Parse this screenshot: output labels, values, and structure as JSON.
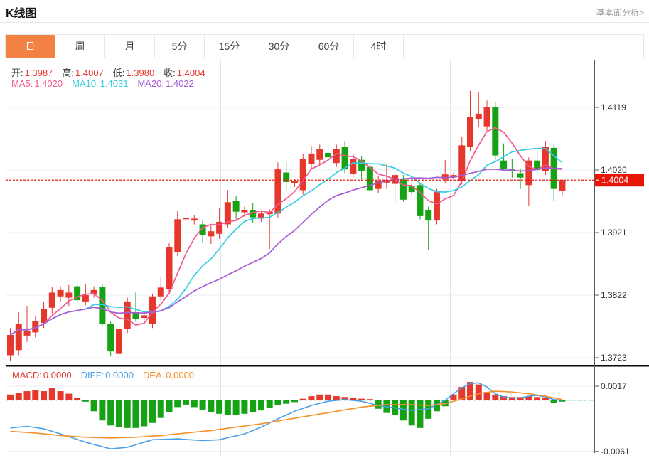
{
  "header": {
    "title": "K线图",
    "analysis_link": "基本面分析>"
  },
  "tabs": {
    "active_index": 0,
    "items": [
      "日",
      "周",
      "月",
      "5分",
      "15分",
      "30分",
      "60分",
      "4时"
    ]
  },
  "ohlc_info": {
    "items": [
      {
        "label": "开:",
        "value": "1.3987"
      },
      {
        "label": "高:",
        "value": "1.4007"
      },
      {
        "label": "低:",
        "value": "1.3980"
      },
      {
        "label": "收:",
        "value": "1.4004"
      }
    ]
  },
  "ma_info": {
    "items": [
      {
        "label": "MA5:",
        "value": "1.4020",
        "color": "#f2588f"
      },
      {
        "label": "MA10:",
        "value": "1.4031",
        "color": "#36cde4"
      },
      {
        "label": "MA20:",
        "value": "1.4022",
        "color": "#a65ad6"
      }
    ]
  },
  "macd_info": {
    "items": [
      {
        "label": "MACD:",
        "value": "0.0000",
        "color": "#e8392f"
      },
      {
        "label": "DIFF:",
        "value": "0.0000",
        "color": "#4aa0e8"
      },
      {
        "label": "DEA:",
        "value": "0.0000",
        "color": "#f5902b"
      }
    ]
  },
  "chart_data": {
    "type": "candlestick",
    "title": "K线图",
    "price_axis_ticks": [
      1.4119,
      1.402,
      1.3921,
      1.3822,
      1.3723
    ],
    "current_price": 1.4004,
    "grid": true,
    "colors": {
      "up": "#e5372c",
      "down": "#15a215",
      "current_line": "#ea1c0d",
      "grid": "#e9eff5",
      "vgrid": "#dce6ee",
      "axis": "#5a5a5a",
      "tag_bg": "#e81508"
    },
    "ma_periods": [
      5,
      10,
      20
    ],
    "ma_colors": [
      "#f2588f",
      "#36cde4",
      "#a65ad6"
    ],
    "candles": [
      [
        1.3727,
        1.377,
        1.3718,
        1.3759
      ],
      [
        1.3735,
        1.3795,
        1.3727,
        1.3776
      ],
      [
        1.3758,
        1.3805,
        1.3748,
        1.3766
      ],
      [
        1.3763,
        1.3788,
        1.3755,
        1.3781
      ],
      [
        1.3778,
        1.3812,
        1.377,
        1.38
      ],
      [
        1.3802,
        1.3835,
        1.3793,
        1.3826
      ],
      [
        1.382,
        1.3836,
        1.3812,
        1.383
      ],
      [
        1.3818,
        1.3838,
        1.3805,
        1.3826
      ],
      [
        1.3836,
        1.3843,
        1.381,
        1.3814
      ],
      [
        1.3812,
        1.384,
        1.3806,
        1.3822
      ],
      [
        1.3824,
        1.3836,
        1.3818,
        1.383
      ],
      [
        1.3835,
        1.384,
        1.3773,
        1.3776
      ],
      [
        1.3776,
        1.378,
        1.3725,
        1.3733
      ],
      [
        1.3729,
        1.3772,
        1.372,
        1.3768
      ],
      [
        1.3768,
        1.3818,
        1.3762,
        1.3812
      ],
      [
        1.3795,
        1.3826,
        1.378,
        1.3784
      ],
      [
        1.3786,
        1.3794,
        1.378,
        1.379
      ],
      [
        1.3777,
        1.3824,
        1.377,
        1.382
      ],
      [
        1.382,
        1.3851,
        1.3813,
        1.3834
      ],
      [
        1.3832,
        1.3904,
        1.3826,
        1.3898
      ],
      [
        1.389,
        1.3955,
        1.3884,
        1.3942
      ],
      [
        1.3942,
        1.396,
        1.3925,
        1.3944
      ],
      [
        1.394,
        1.3948,
        1.3934,
        1.3943
      ],
      [
        1.3934,
        1.394,
        1.3905,
        1.3917
      ],
      [
        1.3915,
        1.3932,
        1.3903,
        1.3923
      ],
      [
        1.3919,
        1.3959,
        1.3911,
        1.3938
      ],
      [
        1.3934,
        1.3988,
        1.3928,
        1.3969
      ],
      [
        1.3971,
        1.3979,
        1.3942,
        1.3954
      ],
      [
        1.3953,
        1.3962,
        1.3946,
        1.3957
      ],
      [
        1.3957,
        1.3968,
        1.3936,
        1.3945
      ],
      [
        1.3943,
        1.3956,
        1.3938,
        1.3951
      ],
      [
        1.395,
        1.3958,
        1.3895,
        1.3954
      ],
      [
        1.3951,
        1.4032,
        1.3944,
        1.4021
      ],
      [
        1.4016,
        1.4033,
        1.3989,
        1.4001
      ],
      [
        1.3999,
        1.4006,
        1.3993,
        1.4002
      ],
      [
        1.3988,
        1.4045,
        1.3981,
        1.4038
      ],
      [
        1.4029,
        1.4058,
        1.4022,
        1.4046
      ],
      [
        1.4036,
        1.406,
        1.4028,
        1.4053
      ],
      [
        1.4047,
        1.4068,
        1.403,
        1.404
      ],
      [
        1.4031,
        1.406,
        1.4025,
        1.4053
      ],
      [
        1.4057,
        1.4066,
        1.4015,
        1.4021
      ],
      [
        1.4014,
        1.4045,
        1.4008,
        1.4038
      ],
      [
        1.4036,
        1.4042,
        1.4005,
        1.4019
      ],
      [
        1.4025,
        1.403,
        1.3983,
        1.3988
      ],
      [
        1.399,
        1.401,
        1.3984,
        1.4002
      ],
      [
        1.4,
        1.403,
        1.399,
        1.4004
      ],
      [
        1.3998,
        1.4018,
        1.3968,
        1.4012
      ],
      [
        1.4005,
        1.4012,
        1.397,
        1.3973
      ],
      [
        1.3994,
        1.4,
        1.398,
        1.3985
      ],
      [
        1.3996,
        1.4,
        1.3942,
        1.3947
      ],
      [
        1.3957,
        1.3962,
        1.3893,
        1.394
      ],
      [
        1.394,
        1.399,
        1.3934,
        1.3986
      ],
      [
        1.4005,
        1.4036,
        1.3999,
        1.4013
      ],
      [
        1.4008,
        1.4016,
        1.4002,
        1.4012
      ],
      [
        1.4003,
        1.4072,
        1.3997,
        1.4059
      ],
      [
        1.4056,
        1.4145,
        1.405,
        1.4104
      ],
      [
        1.41,
        1.4143,
        1.4088,
        1.4109
      ],
      [
        1.4089,
        1.413,
        1.4082,
        1.412
      ],
      [
        1.4119,
        1.4128,
        1.4036,
        1.4043
      ],
      [
        1.4035,
        1.4062,
        1.4018,
        1.4022
      ],
      [
        1.4021,
        1.4038,
        1.4008,
        1.4019
      ],
      [
        1.4015,
        1.4022,
        1.399,
        1.4008
      ],
      [
        1.3996,
        1.404,
        1.3963,
        1.4035
      ],
      [
        1.4035,
        1.4051,
        1.4014,
        1.402
      ],
      [
        1.4018,
        1.4066,
        1.4012,
        1.4057
      ],
      [
        1.4055,
        1.4062,
        1.3971,
        1.399
      ],
      [
        1.3987,
        1.4007,
        1.398,
        1.4004
      ]
    ],
    "macd": {
      "axis_ticks": [
        0.0017,
        -0.0061
      ],
      "diff_color": "#4aa0e8",
      "dea_color": "#f5902b",
      "histogram": [
        0.0007,
        0.0009,
        0.0011,
        0.0012,
        0.0011,
        0.0015,
        0.0011,
        0.0008,
        0.0003,
        -0.0001,
        -0.0013,
        -0.0024,
        -0.003,
        -0.0032,
        -0.0033,
        -0.0033,
        -0.0031,
        -0.0027,
        -0.0021,
        -0.0014,
        -0.0008,
        -0.0005,
        -0.0008,
        -0.0011,
        -0.0014,
        -0.0016,
        -0.0017,
        -0.0017,
        -0.0016,
        -0.0014,
        -0.0012,
        -0.0009,
        -0.0006,
        -0.0004,
        -0.0002,
        0.0002,
        0.0005,
        0.0007,
        0.0007,
        0.0005,
        0.0004,
        0.0003,
        0.0002,
        0.0001,
        -0.001,
        -0.0015,
        -0.0017,
        -0.0024,
        -0.003,
        -0.0033,
        -0.0022,
        -0.0013,
        -0.0007,
        0.0007,
        0.0016,
        0.0022,
        0.0019,
        0.001,
        0.0007,
        0.0005,
        0.0004,
        0.0004,
        0.0005,
        0.0004,
        0.0003,
        -0.0003,
        -0.0001
      ],
      "diff_keypoints": [
        [
          0,
          -0.0033
        ],
        [
          2,
          -0.0031
        ],
        [
          4,
          -0.0034
        ],
        [
          6,
          -0.004
        ],
        [
          9,
          -0.005
        ],
        [
          12,
          -0.0058
        ],
        [
          14,
          -0.0056
        ],
        [
          17,
          -0.0047
        ],
        [
          20,
          -0.0046
        ],
        [
          23,
          -0.0048
        ],
        [
          25,
          -0.0047
        ],
        [
          28,
          -0.004
        ],
        [
          30,
          -0.0032
        ],
        [
          32,
          -0.0022
        ],
        [
          34,
          -0.0013
        ],
        [
          36,
          -0.0006
        ],
        [
          38,
          -0.0001
        ],
        [
          40,
          0.0001
        ],
        [
          42,
          -0.0001
        ],
        [
          44,
          -0.0006
        ],
        [
          46,
          -0.0009
        ],
        [
          48,
          -0.0012
        ],
        [
          50,
          -0.001
        ],
        [
          51,
          -0.0005
        ],
        [
          52,
          0.0
        ],
        [
          53,
          0.0008
        ],
        [
          54,
          0.0015
        ],
        [
          55,
          0.002
        ],
        [
          56,
          0.0021
        ],
        [
          57,
          0.0016
        ],
        [
          58,
          0.0008
        ],
        [
          59,
          0.0004
        ],
        [
          60,
          0.0003
        ],
        [
          61,
          0.0003
        ],
        [
          62,
          0.0005
        ],
        [
          63,
          0.0006
        ],
        [
          64,
          0.0004
        ],
        [
          65,
          0.0001
        ],
        [
          66,
          0.0
        ]
      ],
      "dea_keypoints": [
        [
          0,
          -0.0037
        ],
        [
          3,
          -0.0039
        ],
        [
          6,
          -0.0042
        ],
        [
          9,
          -0.0044
        ],
        [
          12,
          -0.0045
        ],
        [
          15,
          -0.0044
        ],
        [
          18,
          -0.0042
        ],
        [
          21,
          -0.0039
        ],
        [
          24,
          -0.0036
        ],
        [
          27,
          -0.0032
        ],
        [
          30,
          -0.0028
        ],
        [
          33,
          -0.0023
        ],
        [
          36,
          -0.0018
        ],
        [
          39,
          -0.0013
        ],
        [
          42,
          -0.0008
        ],
        [
          45,
          -0.0005
        ],
        [
          48,
          -0.0005
        ],
        [
          50,
          -0.0006
        ],
        [
          52,
          -0.0004
        ],
        [
          54,
          0.0002
        ],
        [
          56,
          0.0008
        ],
        [
          58,
          0.0011
        ],
        [
          60,
          0.001
        ],
        [
          62,
          0.0008
        ],
        [
          64,
          0.0005
        ],
        [
          66,
          0.0001
        ]
      ]
    }
  }
}
